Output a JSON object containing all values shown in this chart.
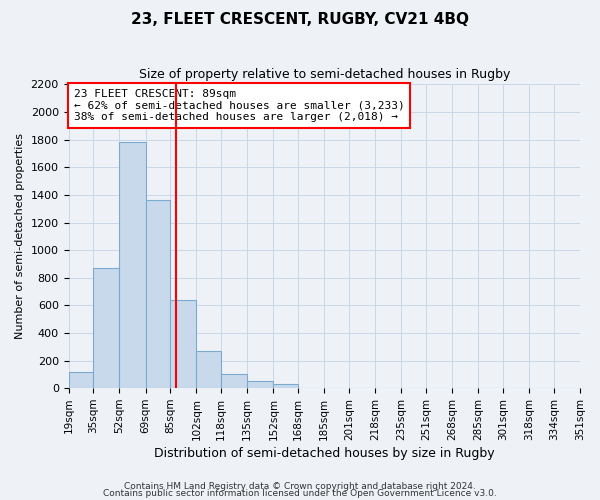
{
  "title": "23, FLEET CRESCENT, RUGBY, CV21 4BQ",
  "subtitle": "Size of property relative to semi-detached houses in Rugby",
  "xlabel": "Distribution of semi-detached houses by size in Rugby",
  "ylabel": "Number of semi-detached properties",
  "footer_line1": "Contains HM Land Registry data © Crown copyright and database right 2024.",
  "footer_line2": "Contains public sector information licensed under the Open Government Licence v3.0.",
  "annotation_title": "23 FLEET CRESCENT: 89sqm",
  "annotation_line1": "← 62% of semi-detached houses are smaller (3,233)",
  "annotation_line2": "38% of semi-detached houses are larger (2,018) →",
  "property_size": 89,
  "bin_edges": [
    19,
    35,
    52,
    69,
    85,
    102,
    118,
    135,
    152,
    168,
    185,
    201,
    218,
    235,
    251,
    268,
    285,
    301,
    318,
    334,
    351
  ],
  "bin_counts": [
    120,
    870,
    1780,
    1360,
    640,
    270,
    100,
    50,
    30,
    0,
    0,
    0,
    0,
    0,
    0,
    0,
    0,
    0,
    0,
    0
  ],
  "bar_color": "#c9d9ec",
  "bar_edge_color": "#7aaad0",
  "vline_color": "red",
  "vline_x": 89,
  "ylim": [
    0,
    2200
  ],
  "yticks": [
    0,
    200,
    400,
    600,
    800,
    1000,
    1200,
    1400,
    1600,
    1800,
    2000,
    2200
  ],
  "grid_color": "#c8d8e8",
  "bg_color": "#eef2f7",
  "annotation_box_color": "white",
  "annotation_box_edge": "red",
  "title_fontsize": 11,
  "subtitle_fontsize": 9,
  "ylabel_fontsize": 8,
  "xlabel_fontsize": 9,
  "footer_fontsize": 6.5
}
